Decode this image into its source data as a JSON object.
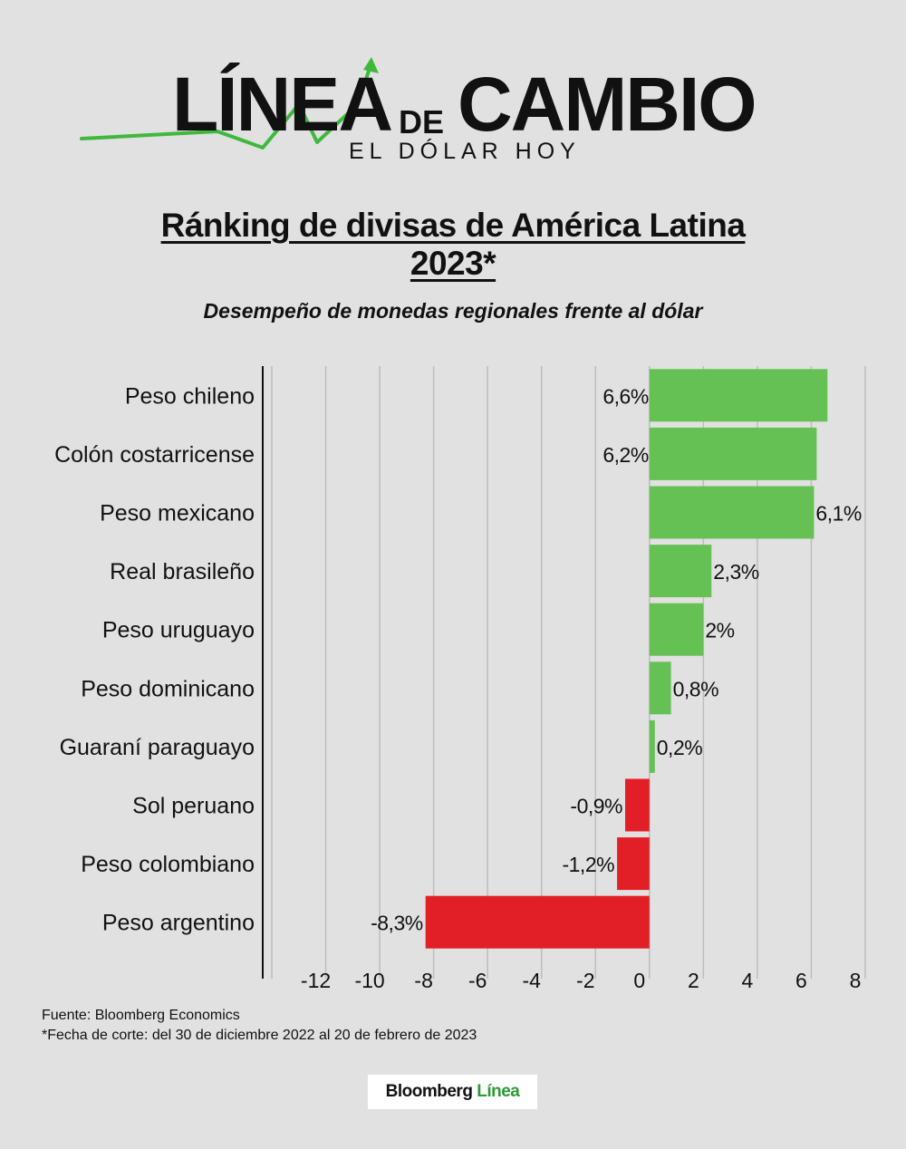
{
  "logo": {
    "word_1": "LÍNEA",
    "word_2": "DE",
    "word_3": "CAMBIO",
    "tagline": "EL DÓLAR HOY",
    "accent_color": "#3fb93c"
  },
  "chart_data": {
    "type": "bar",
    "orientation": "horizontal",
    "title": "Ránking de divisas de América Latina 2023*",
    "subtitle": "Desempeño de monedas regionales frente al dólar",
    "categories": [
      "Peso chileno",
      "Colón costarricense",
      "Peso mexicano",
      "Real brasileño",
      "Peso uruguayo",
      "Peso dominicano",
      "Guaraní paraguayo",
      "Sol peruano",
      "Peso colombiano",
      "Peso argentino"
    ],
    "values": [
      6.6,
      6.2,
      6.1,
      2.3,
      2,
      0.8,
      0.2,
      -0.9,
      -1.2,
      -8.3
    ],
    "value_labels": [
      "6,6%",
      "6,2%",
      "6,1%",
      "2,3%",
      "2%",
      "0,8%",
      "0,2%",
      "-0,9%",
      "-1,2%",
      "-8,3%"
    ],
    "xlim": [
      -14,
      8
    ],
    "xticks": [
      -12,
      -10,
      -8,
      -6,
      -4,
      -2,
      0,
      2,
      4,
      6,
      8
    ],
    "xtick_labels": [
      "-12",
      "-10",
      "-8",
      "-6",
      "-4",
      "-2",
      "0",
      "2",
      "4",
      "6",
      "8"
    ],
    "grid": true,
    "colors": {
      "positive": "#66c155",
      "negative": "#e21f26",
      "grid": "#bdbdbd",
      "axis": "#111111"
    }
  },
  "footer": {
    "source": "Fuente: Bloomberg Economics",
    "note": "*Fecha de corte: del 30 de diciembre 2022 al 20 de febrero de 2023"
  },
  "brand": {
    "name_1": "Bloomberg",
    "name_2": "Línea"
  }
}
